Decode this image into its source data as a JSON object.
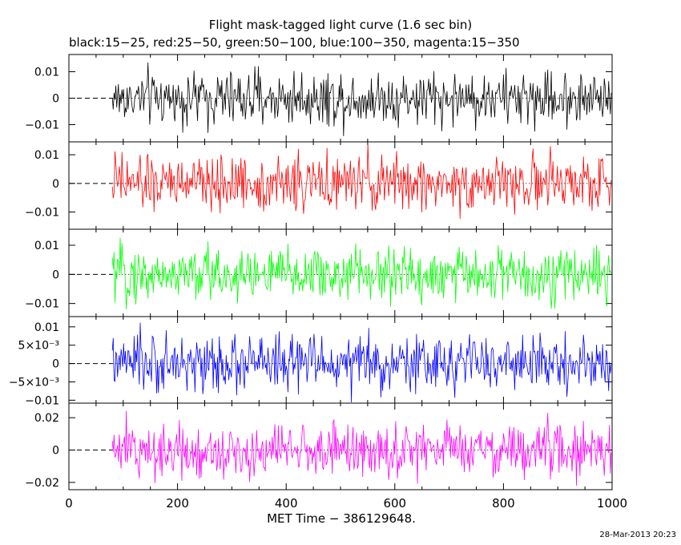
{
  "title": "Flight mask-tagged light curve (1.6 sec bin)",
  "subtitle": "black:15−25, red:25−50, green:50−100, blue:100−350, magenta:15−350",
  "xlabel": "MET Time − 386129648.",
  "timestamp": "28-Mar-2013 20:23",
  "chart_data": {
    "type": "line",
    "x_range": [
      0,
      1000
    ],
    "x_ticks": [
      0,
      200,
      400,
      600,
      800,
      1000
    ],
    "x_tick_labels": [
      "0",
      "200",
      "400",
      "600",
      "800",
      "1000"
    ],
    "data_start": 80,
    "data_end": 1000,
    "bin_seconds": 1.6,
    "zero_line": "dashed from x=0 to data start, dotted beyond",
    "series": [
      {
        "name": "black:15−25",
        "color": "#000000",
        "ylim": [
          -0.0165,
          0.0165
        ],
        "y_ticks": [
          0.01,
          0,
          -0.01
        ],
        "y_tick_labels": [
          "0.01",
          "0",
          "−0.01"
        ],
        "amplitude": 0.0052
      },
      {
        "name": "red:25−50",
        "color": "#ff0000",
        "ylim": [
          -0.016,
          0.0145
        ],
        "y_ticks": [
          0.01,
          0,
          -0.01
        ],
        "y_tick_labels": [
          "0.01",
          "0",
          "−0.01"
        ],
        "amplitude": 0.0048
      },
      {
        "name": "green:50−100",
        "color": "#00ff00",
        "ylim": [
          -0.0145,
          0.0155
        ],
        "y_ticks": [
          0.01,
          0,
          -0.01
        ],
        "y_tick_labels": [
          "0.01",
          "0",
          "−0.01"
        ],
        "amplitude": 0.0048
      },
      {
        "name": "blue:100−350",
        "color": "#0000ff",
        "ylim": [
          -0.0108,
          0.0128
        ],
        "y_ticks": [
          0.01,
          0.005,
          0,
          -0.005,
          -0.01
        ],
        "y_tick_labels": [
          "0.01",
          "5×10⁻³",
          "0",
          "−5×10⁻³",
          "−0.01"
        ],
        "amplitude": 0.0038
      },
      {
        "name": "magenta:15−350",
        "color": "#ff00ff",
        "ylim": [
          -0.0245,
          0.029
        ],
        "y_ticks": [
          0.02,
          0,
          -0.02
        ],
        "y_tick_labels": [
          "0.02",
          "0",
          "−0.02"
        ],
        "amplitude": 0.0085
      }
    ]
  }
}
